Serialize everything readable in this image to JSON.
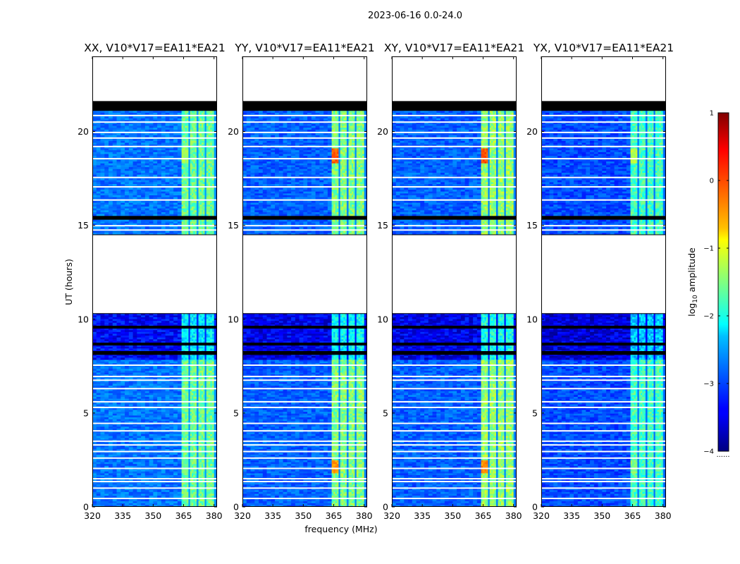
{
  "chart_data": {
    "type": "heatmap",
    "suptitle": "2023-06-16 0.0-24.0",
    "xlabel": "frequency (MHz)",
    "ylabel": "UT (hours)",
    "xlim": [
      320,
      381.5
    ],
    "ylim": [
      0,
      24
    ],
    "xticks": [
      320,
      335,
      350,
      365,
      380
    ],
    "yticks": [
      0,
      5,
      10,
      15,
      20
    ],
    "colorbar": {
      "label": "log",
      "label_sub": "10",
      "label_tail": " amplitude",
      "range": [
        -4,
        1
      ],
      "ticks": [
        1,
        0,
        -1,
        -2,
        -3,
        -4
      ],
      "tick_labels": [
        "1",
        "0",
        "−1",
        "−2",
        "−3",
        "−4"
      ],
      "colormap": "jet",
      "footer": "......"
    },
    "panels": [
      {
        "title": "XX, V10*V17=EA11*EA21",
        "baseline_level": -2.8,
        "band_level": -1.6,
        "peak_level": -1.1
      },
      {
        "title": "YY, V10*V17=EA11*EA21",
        "baseline_level": -2.9,
        "band_level": -1.5,
        "peak_level": 0.1
      },
      {
        "title": "XY, V10*V17=EA11*EA21",
        "baseline_level": -2.9,
        "band_level": -1.4,
        "peak_level": 0.2
      },
      {
        "title": "YX, V10*V17=EA11*EA21",
        "baseline_level": -3.0,
        "band_level": -1.8,
        "peak_level": -1.0
      }
    ],
    "band_freq_range_mhz": [
      364,
      380
    ],
    "band_channels": [
      {
        "f0": 364.0,
        "f1": 367.4
      },
      {
        "f0": 368.2,
        "f1": 371.4
      },
      {
        "f0": 372.3,
        "f1": 375.4
      },
      {
        "f0": 376.2,
        "f1": 380.0
      }
    ],
    "data_segments_ut": [
      {
        "t0": 0.0,
        "t1": 7.85,
        "note": "normal"
      },
      {
        "t0": 7.85,
        "t1": 10.3,
        "note": "dark / noisy"
      },
      {
        "t0": 14.5,
        "t1": 15.3,
        "note": "short segment"
      },
      {
        "t0": 15.5,
        "t1": 21.1,
        "note": "normal"
      }
    ],
    "flagged_blocks_ut": [
      {
        "t0": 10.3,
        "t1": 14.5
      },
      {
        "t0": 21.6,
        "t1": 24.0
      }
    ],
    "dark_bars_ut": [
      {
        "t0": 21.1,
        "t1": 21.6
      },
      {
        "t0": 15.3,
        "t1": 15.5
      },
      {
        "t0": 8.1,
        "t1": 8.3
      },
      {
        "t0": 8.6,
        "t1": 8.75
      },
      {
        "t0": 9.5,
        "t1": 9.65
      }
    ],
    "gap_lines_ut": [
      0.45,
      1.0,
      1.35,
      1.5,
      2.05,
      2.6,
      2.95,
      3.3,
      3.5,
      4.05,
      4.45,
      5.3,
      5.6,
      6.3,
      6.75,
      6.95,
      7.55,
      14.75,
      14.98,
      16.35,
      17.05,
      17.55,
      18.55,
      19.2,
      19.65,
      19.95,
      20.5,
      20.85
    ]
  }
}
